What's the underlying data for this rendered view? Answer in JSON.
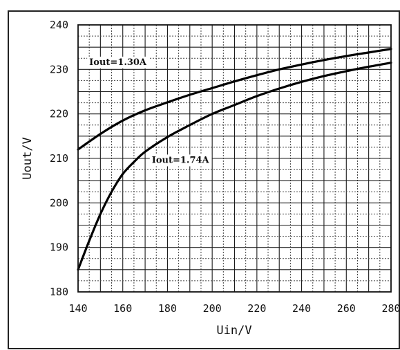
{
  "chart_data": {
    "type": "line",
    "title": "",
    "xlabel": "Uin/V",
    "ylabel": "Uout/V",
    "xlim": [
      140,
      280
    ],
    "ylim": [
      180,
      240
    ],
    "x_ticks": [
      140,
      160,
      180,
      200,
      220,
      240,
      260,
      280
    ],
    "y_ticks": [
      180,
      190,
      200,
      210,
      220,
      230,
      240
    ],
    "grid": true,
    "legend": "none",
    "series": [
      {
        "name": "Iout=1.30A",
        "x": [
          140,
          150,
          160,
          170,
          180,
          190,
          200,
          210,
          220,
          230,
          240,
          250,
          260,
          270,
          280
        ],
        "y": [
          212,
          215.5,
          218.5,
          220.8,
          222.6,
          224.3,
          225.8,
          227.3,
          228.7,
          230.0,
          231.1,
          232.1,
          233.0,
          233.8,
          234.6
        ]
      },
      {
        "name": "Iout=1.74A",
        "x": [
          140,
          145,
          150,
          155,
          160,
          165,
          170,
          180,
          190,
          200,
          210,
          220,
          230,
          240,
          250,
          260,
          270,
          280
        ],
        "y": [
          185,
          191.5,
          197.5,
          202.5,
          206.5,
          209.2,
          211.5,
          214.8,
          217.5,
          220.0,
          222.0,
          224.0,
          225.7,
          227.2,
          228.5,
          229.6,
          230.6,
          231.5
        ]
      }
    ],
    "annotations": [
      {
        "text": "Iout=1.30A",
        "x": 145,
        "y": 231
      },
      {
        "text": "Iout=1.74A",
        "x": 173,
        "y": 209
      }
    ]
  }
}
